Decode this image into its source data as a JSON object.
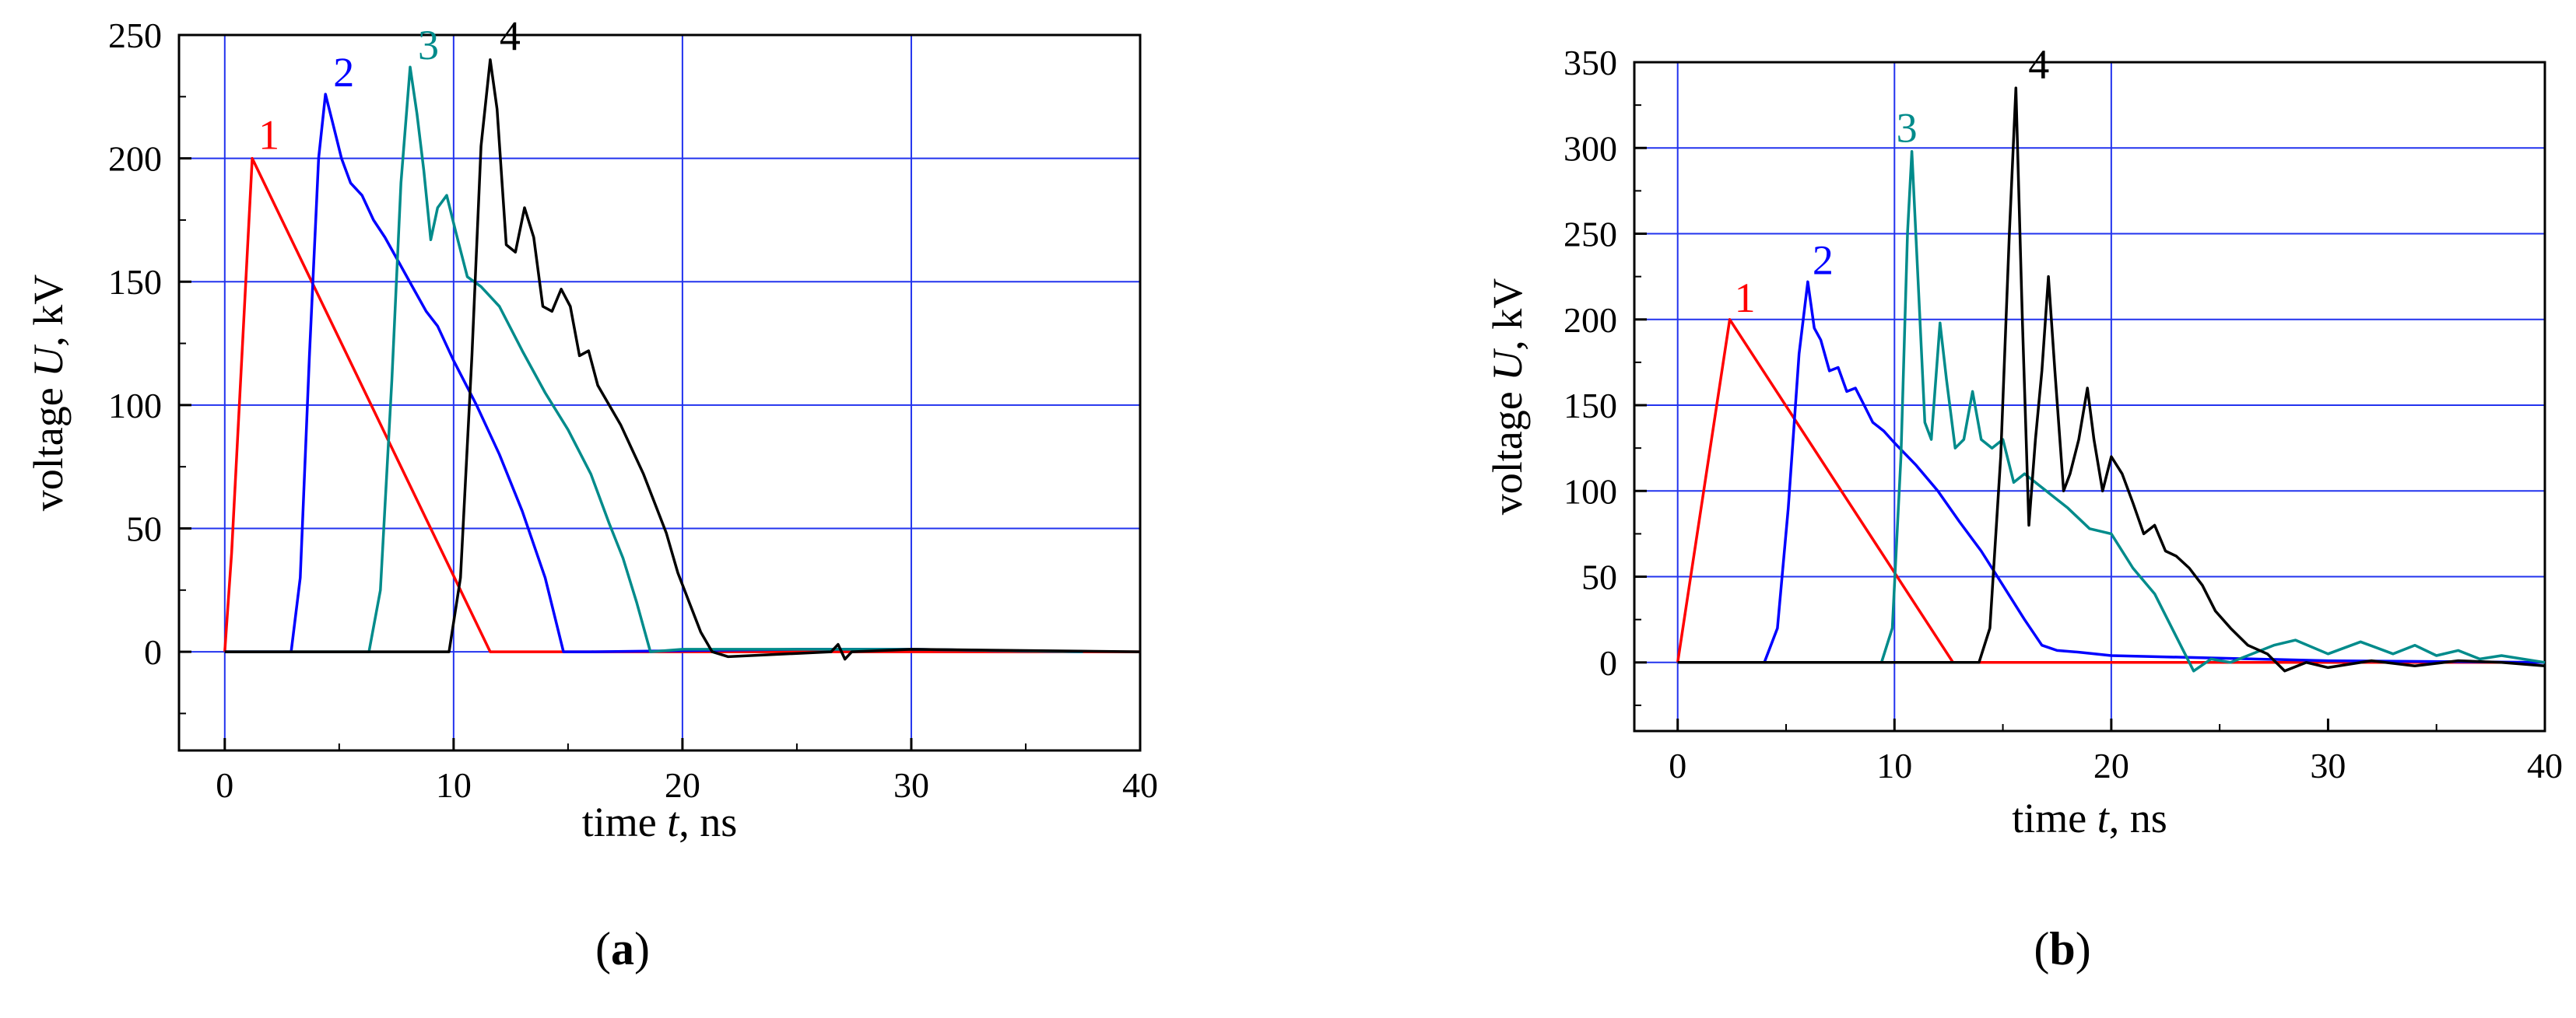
{
  "chart_data": [
    {
      "type": "line",
      "panel_label": "(a)",
      "xlabel": "time t, ns",
      "ylabel": "voltage U, kV",
      "xlim": [
        -2,
        40
      ],
      "ylim": [
        -40,
        250
      ],
      "xticks": [
        0,
        10,
        20,
        30,
        40
      ],
      "yticks": [
        0,
        50,
        100,
        150,
        200,
        250
      ],
      "grid": true,
      "grid_x": [
        0,
        10,
        20,
        30
      ],
      "grid_y": [
        0,
        50,
        100,
        150,
        200
      ],
      "series": [
        {
          "name": "1",
          "color": "#ff0000",
          "x": [
            0,
            0.3,
            1.2,
            11.6,
            40
          ],
          "y": [
            0,
            40,
            200,
            0,
            0
          ]
        },
        {
          "name": "2",
          "color": "#0000ff",
          "x": [
            0,
            2.9,
            3.3,
            3.7,
            4.1,
            4.4,
            4.7,
            5.1,
            5.5,
            6.0,
            6.5,
            7.0,
            7.6,
            8.2,
            8.8,
            9.3,
            10.0,
            11.0,
            12.0,
            13.0,
            14.0,
            14.8,
            16,
            25,
            30,
            37.5
          ],
          "y": [
            0,
            0,
            30,
            120,
            200,
            226,
            215,
            200,
            190,
            185,
            175,
            168,
            158,
            148,
            138,
            132,
            118,
            100,
            80,
            57,
            30,
            0,
            0,
            1,
            1,
            0
          ]
        },
        {
          "name": "3",
          "color": "#008b8b",
          "x": [
            0,
            6.3,
            6.8,
            7.3,
            7.7,
            8.1,
            8.4,
            8.7,
            9.0,
            9.3,
            9.7,
            10.1,
            10.6,
            11.2,
            12.0,
            13.0,
            14.0,
            15.0,
            16.0,
            16.8,
            17.4,
            18.0,
            18.6,
            20,
            30,
            37.5
          ],
          "y": [
            0,
            0,
            25,
            110,
            190,
            237,
            218,
            195,
            167,
            180,
            185,
            170,
            152,
            148,
            140,
            122,
            105,
            90,
            72,
            52,
            38,
            20,
            0,
            1,
            1,
            0
          ]
        },
        {
          "name": "4",
          "color": "#000000",
          "x": [
            0,
            9.8,
            10.3,
            10.8,
            11.2,
            11.6,
            11.9,
            12.3,
            12.7,
            13.1,
            13.5,
            13.9,
            14.3,
            14.7,
            15.1,
            15.5,
            15.9,
            16.3,
            16.8,
            17.3,
            17.8,
            18.3,
            18.8,
            19.3,
            19.8,
            20.3,
            20.8,
            21.3,
            22.0,
            26.5,
            26.8,
            27.1,
            27.4,
            30,
            40
          ],
          "y": [
            0,
            0,
            30,
            120,
            205,
            240,
            220,
            165,
            162,
            180,
            168,
            140,
            138,
            147,
            140,
            120,
            122,
            108,
            100,
            92,
            82,
            72,
            60,
            48,
            32,
            20,
            8,
            0,
            -2,
            0,
            3,
            -3,
            0,
            1,
            0
          ]
        }
      ],
      "curve_labels": [
        "1",
        "2",
        "3",
        "4"
      ]
    },
    {
      "type": "line",
      "panel_label": "(b)",
      "xlabel": "time t, ns",
      "ylabel": "voltage U, kV",
      "xlim": [
        -2,
        40
      ],
      "ylim": [
        -40,
        350
      ],
      "xticks": [
        0,
        10,
        20,
        30,
        40
      ],
      "yticks": [
        0,
        50,
        100,
        150,
        200,
        250,
        300,
        350
      ],
      "grid": true,
      "grid_x": [
        0,
        10,
        20
      ],
      "grid_y": [
        0,
        50,
        100,
        150,
        200,
        250,
        300
      ],
      "series": [
        {
          "name": "1",
          "color": "#ff0000",
          "x": [
            0,
            2.4,
            12.7,
            40
          ],
          "y": [
            0,
            200,
            0,
            0
          ]
        },
        {
          "name": "2",
          "color": "#0000ff",
          "x": [
            0,
            4.0,
            4.6,
            5.1,
            5.6,
            6.0,
            6.3,
            6.6,
            7.0,
            7.4,
            7.8,
            8.2,
            8.6,
            9.0,
            9.5,
            10.0,
            11.0,
            12.0,
            13.0,
            14.0,
            15.0,
            16.0,
            16.8,
            17.5,
            18.5,
            20,
            30,
            40
          ],
          "y": [
            0,
            0,
            20,
            90,
            180,
            222,
            195,
            188,
            170,
            172,
            158,
            160,
            150,
            140,
            135,
            128,
            115,
            100,
            82,
            65,
            45,
            25,
            10,
            7,
            6,
            4,
            1,
            0
          ]
        },
        {
          "name": "3",
          "color": "#008b8b",
          "x": [
            0,
            9.4,
            9.9,
            10.3,
            10.6,
            10.8,
            11.1,
            11.4,
            11.7,
            12.1,
            12.4,
            12.8,
            13.2,
            13.6,
            14.0,
            14.5,
            15.0,
            15.5,
            16.0,
            17.0,
            18.0,
            19.0,
            20.0,
            21.0,
            22.0,
            23.0,
            23.8,
            24.6,
            25.5,
            27.5,
            28.5,
            30,
            31.5,
            33,
            34,
            35,
            36,
            37,
            38,
            40
          ],
          "y": [
            0,
            0,
            20,
            120,
            250,
            298,
            220,
            140,
            130,
            198,
            165,
            125,
            130,
            158,
            130,
            125,
            130,
            105,
            110,
            100,
            90,
            78,
            75,
            55,
            40,
            15,
            -5,
            2,
            0,
            10,
            13,
            5,
            12,
            5,
            10,
            4,
            7,
            2,
            4,
            0
          ]
        },
        {
          "name": "4",
          "color": "#000000",
          "x": [
            0,
            13.9,
            14.4,
            14.9,
            15.3,
            15.6,
            15.9,
            16.2,
            16.5,
            16.8,
            17.1,
            17.4,
            17.8,
            18.1,
            18.5,
            18.9,
            19.2,
            19.6,
            20.0,
            20.5,
            21.0,
            21.5,
            22.0,
            22.5,
            23.0,
            23.6,
            24.2,
            24.8,
            25.5,
            26.3,
            27.2,
            28.0,
            29.0,
            30,
            32,
            34,
            36,
            38,
            40
          ],
          "y": [
            0,
            0,
            20,
            120,
            250,
            335,
            200,
            80,
            130,
            170,
            225,
            170,
            100,
            110,
            130,
            160,
            130,
            100,
            120,
            110,
            93,
            75,
            80,
            65,
            62,
            55,
            45,
            30,
            20,
            10,
            5,
            -5,
            0,
            -3,
            1,
            -2,
            1,
            0,
            -2
          ]
        }
      ],
      "curve_labels": [
        "1",
        "2",
        "3",
        "4"
      ]
    }
  ]
}
